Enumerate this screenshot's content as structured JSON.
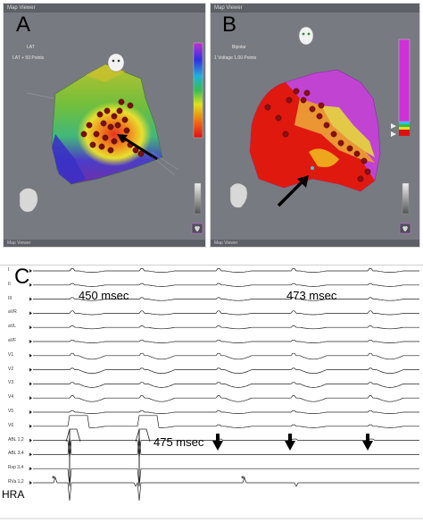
{
  "panels": {
    "a": {
      "letter": "A",
      "title": "Map Viewer",
      "map_label": "LAT",
      "legend_text": "LAT + 50 Points",
      "foot": "Map Viewer"
    },
    "b": {
      "letter": "B",
      "title": "Map Viewer",
      "map_label": "Bipolar",
      "legend_text": "1 Voltage 1.00 Points",
      "foot": "Map Viewer"
    }
  },
  "ecg": {
    "letter": "C",
    "leads": [
      "I",
      "II",
      "III",
      "aVR",
      "aVL",
      "aVF",
      "V1",
      "V2",
      "V3",
      "V4",
      "V5",
      "V6",
      "ABL 1,2",
      "ABL 3,4",
      "Rvp 3,4",
      "RVa 1,2"
    ],
    "annotations": {
      "interval_1": "450 msec",
      "interval_2": "473 msec",
      "interval_3": "475 msec",
      "hra": "HRA",
      "star_1": "*",
      "star_2": "*"
    }
  },
  "colors": {
    "panel_bg": "#777a80",
    "map_red": "#e0190f",
    "map_purple": "#c24bd6",
    "arrow": "#000000"
  }
}
